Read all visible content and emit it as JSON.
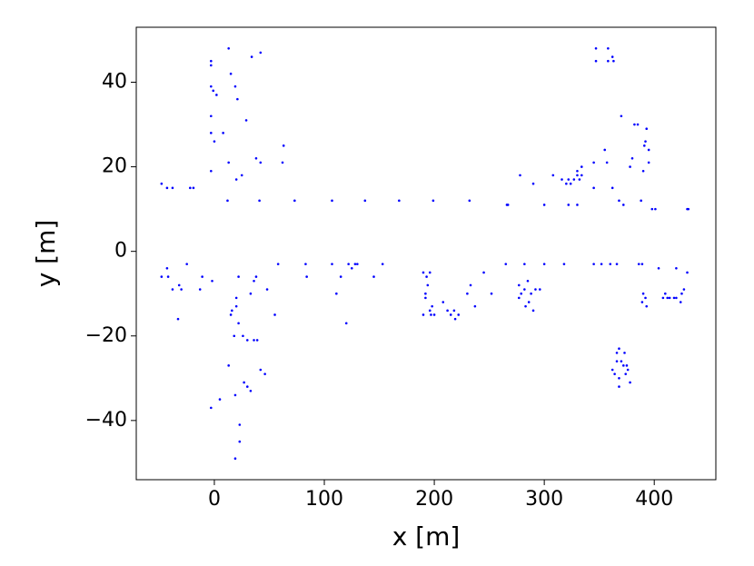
{
  "chart_data": {
    "type": "scatter",
    "xlabel": "x [m]",
    "ylabel": "y [m]",
    "xlim": [
      -71,
      456
    ],
    "ylim": [
      -54,
      53
    ],
    "xticks": [
      0,
      100,
      200,
      300,
      400
    ],
    "yticks": [
      {
        "value": -40,
        "label": "−40"
      },
      {
        "value": -20,
        "label": "−20"
      },
      0,
      20,
      40
    ],
    "series": [
      {
        "color": "#0000ff",
        "x": [
          -48,
          -43,
          -38,
          -22,
          -19,
          -3,
          -3,
          -3,
          -1,
          2,
          -3,
          -3,
          0,
          -3,
          8,
          13,
          15,
          19,
          21,
          29,
          13,
          20,
          25,
          34,
          42,
          38,
          42,
          63,
          62,
          12,
          41,
          73,
          107,
          137,
          168,
          199,
          232,
          266,
          267,
          300,
          308,
          316,
          320,
          322,
          324,
          327,
          330,
          330,
          332,
          334,
          334,
          322,
          330,
          345,
          345,
          355,
          357,
          362,
          368,
          372,
          378,
          380,
          382,
          385,
          370,
          388,
          391,
          393,
          392,
          395,
          390,
          395,
          398,
          401,
          430,
          431,
          347,
          347,
          358,
          358,
          362,
          363,
          278,
          290,
          -48,
          -43,
          -42,
          -38,
          -33,
          -32,
          -30,
          -25,
          -13,
          -11,
          -2,
          5,
          -3,
          13,
          15,
          16,
          18,
          20,
          20,
          22,
          22,
          26,
          30,
          33,
          30,
          27,
          19,
          23,
          23,
          19,
          33,
          36,
          38,
          36,
          39,
          42,
          46,
          48,
          55,
          58,
          83,
          84,
          107,
          111,
          115,
          120,
          122,
          125,
          128,
          130,
          145,
          153,
          190,
          190,
          193,
          194,
          192,
          192,
          196,
          196,
          197,
          198,
          200,
          208,
          212,
          215,
          218,
          219,
          222,
          230,
          233,
          237,
          245,
          252,
          265,
          277,
          277,
          279,
          282,
          282,
          283,
          285,
          286,
          288,
          290,
          292,
          296,
          300,
          318,
          345,
          352,
          360,
          366,
          386,
          389,
          389,
          390,
          392,
          393,
          404,
          408,
          410,
          412,
          414,
          418,
          420,
          420,
          424,
          425,
          427,
          430,
          362,
          364,
          366,
          368,
          368,
          368,
          370,
          372,
          373,
          374,
          375,
          376,
          378,
          366
        ],
        "values": [
          16,
          15,
          15,
          15,
          15,
          45,
          44,
          39,
          38,
          37,
          32,
          28,
          26,
          19,
          28,
          48,
          42,
          39,
          36,
          31,
          21,
          17,
          18,
          46,
          47,
          22,
          21,
          25,
          21,
          12,
          12,
          12,
          12,
          12,
          12,
          12,
          12,
          11,
          11,
          11,
          18,
          17,
          16,
          17,
          16,
          17,
          19,
          18,
          17,
          20,
          18,
          11,
          11,
          15,
          21,
          24,
          21,
          15,
          12,
          11,
          20,
          22,
          30,
          30,
          32,
          12,
          25,
          29,
          26,
          24,
          19,
          21,
          10,
          10,
          10,
          10,
          48,
          45,
          48,
          45,
          46,
          45,
          18,
          16,
          -6,
          -4,
          -6,
          -9,
          -16,
          -8,
          -9,
          -3,
          -9,
          -6,
          -7,
          -35,
          -37,
          -27,
          -15,
          -14,
          -20,
          -11,
          -13,
          -6,
          -17,
          -20,
          -21,
          -33,
          -32,
          -31,
          -49,
          -41,
          -45,
          -34,
          -10,
          -7,
          -6,
          -21,
          -21,
          -28,
          -29,
          -9,
          -15,
          -3,
          -3,
          -6,
          -3,
          -10,
          -6,
          -17,
          -3,
          -4,
          -3,
          -3,
          -6,
          -3,
          -5,
          -15,
          -6,
          -8,
          -11,
          -10,
          -5,
          -14,
          -15,
          -13,
          -15,
          -12,
          -14,
          -15,
          -14,
          -16,
          -15,
          -10,
          -8,
          -13,
          -5,
          -10,
          -3,
          -8,
          -11,
          -10,
          -9,
          -3,
          -13,
          -7,
          -12,
          -10,
          -14,
          -9,
          -9,
          -3,
          -3,
          -3,
          -3,
          -3,
          -3,
          -3,
          -3,
          -12,
          -10,
          -11,
          -13,
          -4,
          -11,
          -10,
          -11,
          -11,
          -11,
          -4,
          -11,
          -12,
          -10,
          -9,
          -5,
          -28,
          -29,
          -24,
          -23,
          -30,
          -32,
          -26,
          -27,
          -24,
          -29,
          -27,
          -28,
          -31,
          -26
        ]
      }
    ]
  }
}
